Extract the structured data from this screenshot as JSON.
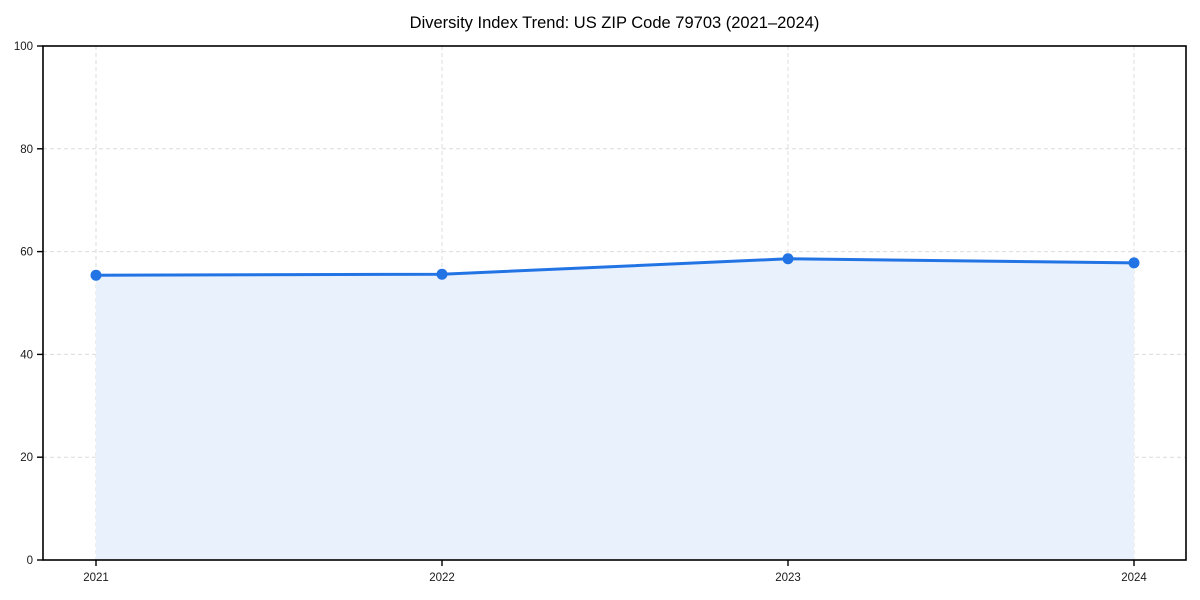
{
  "chart_data": {
    "type": "line",
    "title": "Diversity Index Trend: US ZIP Code 79703 (2021–2024)",
    "x": [
      "2021",
      "2022",
      "2023",
      "2024"
    ],
    "series": [
      {
        "name": "Diversity Index",
        "values": [
          55.4,
          55.6,
          58.6,
          57.8
        ]
      }
    ],
    "xlabel": "",
    "ylabel": "",
    "ylim": [
      0,
      100
    ],
    "yticks": [
      0,
      20,
      40,
      60,
      80,
      100
    ],
    "grid": true,
    "grid_style": "dashed",
    "legend": "none",
    "area_fill": true,
    "marker": "circle",
    "colors": {
      "line": "#2274e5",
      "fill": "#e9f1fc",
      "grid": "#dcdcdc",
      "spine": "#000000",
      "tick_label": "#1a1a1a",
      "title": "#000000",
      "background": "#ffffff"
    }
  }
}
